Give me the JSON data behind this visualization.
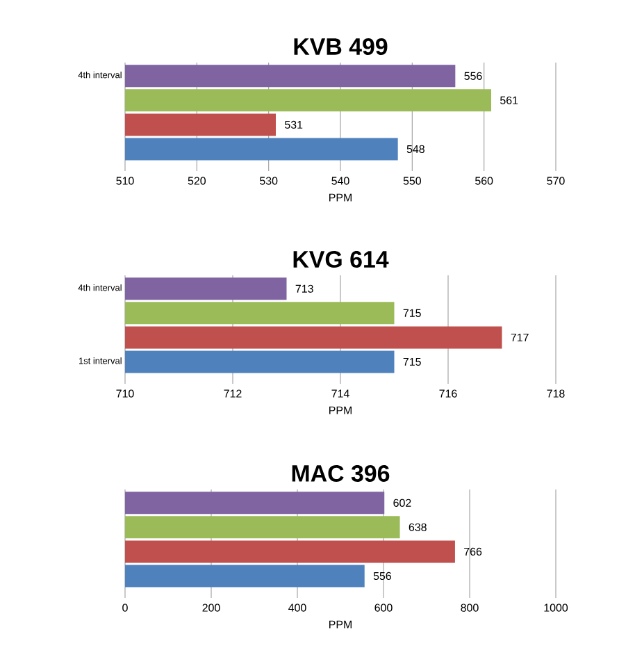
{
  "chart_data": [
    {
      "type": "bar",
      "orientation": "horizontal",
      "title": "KVB 499",
      "xlabel": "PPM",
      "categories": [
        "4th interval",
        null,
        null,
        null
      ],
      "values": [
        556,
        561,
        531,
        548
      ],
      "colors": [
        "#8064a2",
        "#9bbb59",
        "#c0504d",
        "#4f81bd"
      ],
      "xlim": [
        510,
        570
      ],
      "xticks": [
        510,
        520,
        530,
        540,
        550,
        560,
        570
      ],
      "grid": "x",
      "data_labels": true
    },
    {
      "type": "bar",
      "orientation": "horizontal",
      "title": "KVG 614",
      "xlabel": "PPM",
      "categories": [
        "4th interval",
        null,
        null,
        "1st interval"
      ],
      "values": [
        713,
        715,
        717,
        715
      ],
      "colors": [
        "#8064a2",
        "#9bbb59",
        "#c0504d",
        "#4f81bd"
      ],
      "xlim": [
        710,
        718
      ],
      "xticks": [
        710,
        712,
        714,
        716,
        718
      ],
      "grid": "x",
      "data_labels": true
    },
    {
      "type": "bar",
      "orientation": "horizontal",
      "title": "MAC 396",
      "xlabel": "PPM",
      "categories": [
        null,
        null,
        null,
        null
      ],
      "values": [
        602,
        638,
        766,
        556
      ],
      "colors": [
        "#8064a2",
        "#9bbb59",
        "#c0504d",
        "#4f81bd"
      ],
      "xlim": [
        0,
        1000
      ],
      "xticks": [
        0,
        200,
        400,
        600,
        800,
        1000
      ],
      "grid": "x",
      "data_labels": true
    }
  ]
}
